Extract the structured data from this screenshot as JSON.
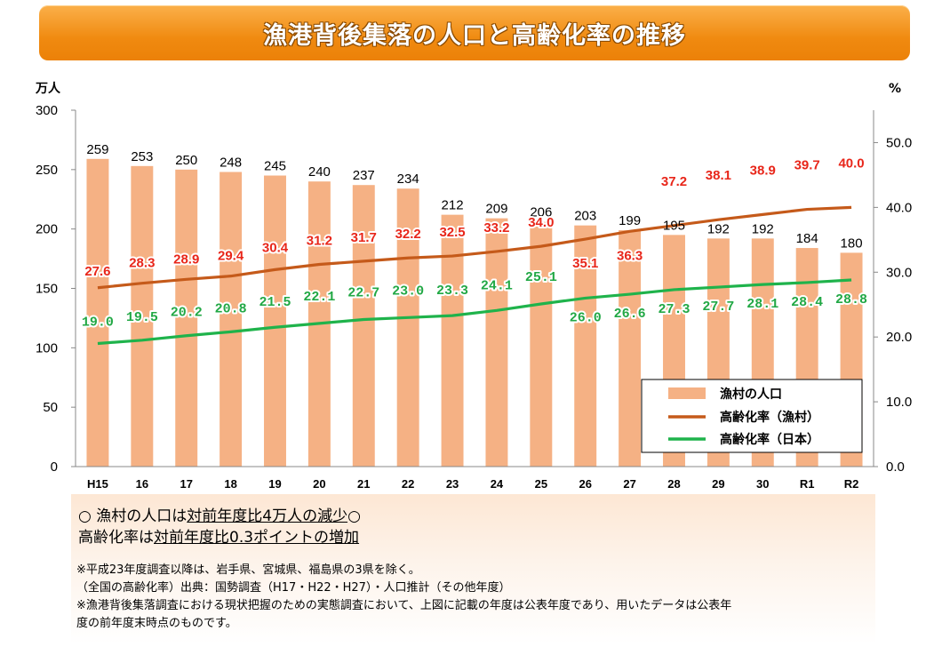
{
  "title": "漁港背後集落の人口と高齢化率の推移",
  "chart_data": {
    "type": "bar+line",
    "categories": [
      "H15",
      "16",
      "17",
      "18",
      "19",
      "20",
      "21",
      "22",
      "23",
      "24",
      "25",
      "26",
      "27",
      "28",
      "29",
      "30",
      "R1",
      "R2"
    ],
    "y_left_unit": "万人",
    "y_right_unit": "%",
    "y_left_ticks": [
      "0",
      "50",
      "100",
      "150",
      "200",
      "250",
      "300"
    ],
    "y_right_ticks": [
      "0.0",
      "10.0",
      "20.0",
      "30.0",
      "40.0",
      "50.0"
    ],
    "ylim_left": [
      0,
      300
    ],
    "ylim_right": [
      0,
      55
    ],
    "series": [
      {
        "name": "漁村の人口",
        "kind": "bar",
        "axis": "left",
        "color": "#f5b184",
        "values": [
          259,
          253,
          250,
          248,
          245,
          240,
          237,
          234,
          212,
          209,
          206,
          203,
          199,
          195,
          192,
          192,
          184,
          180
        ]
      },
      {
        "name": "高齢化率（漁村）",
        "kind": "line",
        "axis": "right",
        "color": "#c55a1a",
        "values": [
          27.6,
          28.3,
          28.9,
          29.4,
          30.4,
          31.2,
          31.7,
          32.2,
          32.5,
          33.2,
          34.0,
          35.1,
          36.3,
          37.2,
          38.1,
          38.9,
          39.7,
          40.0
        ]
      },
      {
        "name": "高齢化率（日本）",
        "kind": "line",
        "axis": "right",
        "color": "#1fb34b",
        "values": [
          19.0,
          19.5,
          20.2,
          20.8,
          21.5,
          22.1,
          22.7,
          23.0,
          23.3,
          24.1,
          25.1,
          26.0,
          26.6,
          27.3,
          27.7,
          28.1,
          28.4,
          28.8
        ]
      }
    ],
    "legend_position": "bottom-right",
    "grid": false
  },
  "summary": {
    "line1_prefix": "○ 漁村の人口は",
    "line1_underlined": "対前年度比4万人の減少",
    "line1_suffix": "○",
    "line2_prefix": "高齢化率は",
    "line2_underlined": "対前年度比0.3ポイントの増加"
  },
  "footnotes": [
    "※平成23年度調査以降は、岩手県、宮城県、福島県の3県を除く。",
    "（全国の高齢化率）出典：国勢調査（H17・H22・H27）・人口推計（その他年度）",
    "※漁港背後集落調査における現状把握のための実態調査において、上図に記載の年度は公表年度であり、用いたデータは公表年",
    "度の前年度末時点のものです。"
  ]
}
